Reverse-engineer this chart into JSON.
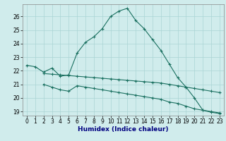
{
  "xlabel": "Humidex (Indice chaleur)",
  "bg_color": "#d0ecec",
  "line_color": "#1a7060",
  "grid_color": "#aad4d4",
  "xlim": [
    -0.5,
    23.5
  ],
  "ylim": [
    18.7,
    26.9
  ],
  "xticks": [
    0,
    1,
    2,
    3,
    4,
    5,
    6,
    7,
    8,
    9,
    10,
    11,
    12,
    13,
    14,
    15,
    16,
    17,
    18,
    19,
    20,
    21,
    22,
    23
  ],
  "yticks": [
    19,
    20,
    21,
    22,
    23,
    24,
    25,
    26
  ],
  "curve1_x": [
    0,
    1,
    2,
    3,
    4,
    5,
    6,
    7,
    8,
    9,
    10,
    11,
    12,
    13,
    14,
    15,
    16,
    17,
    18,
    19,
    20,
    21,
    22,
    23
  ],
  "curve1_y": [
    22.4,
    22.3,
    21.9,
    22.2,
    21.6,
    21.7,
    23.3,
    24.1,
    24.5,
    25.1,
    26.0,
    26.4,
    26.6,
    25.7,
    25.1,
    24.3,
    23.5,
    22.5,
    21.5,
    20.8,
    20.0,
    19.1,
    19.0,
    18.9
  ],
  "curve2_x": [
    2,
    3,
    4,
    5,
    6,
    7,
    8,
    9,
    10,
    11,
    12,
    13,
    14,
    15,
    16,
    17,
    18,
    19,
    20,
    21,
    22,
    23
  ],
  "curve2_y": [
    21.8,
    21.75,
    21.7,
    21.65,
    21.6,
    21.55,
    21.5,
    21.45,
    21.4,
    21.35,
    21.3,
    21.25,
    21.2,
    21.15,
    21.1,
    21.0,
    20.9,
    20.8,
    20.7,
    20.6,
    20.5,
    20.4
  ],
  "curve3_x": [
    2,
    3,
    4,
    5,
    6,
    7,
    8,
    9,
    10,
    11,
    12,
    13,
    14,
    15,
    16,
    17,
    18,
    19,
    20,
    21,
    22,
    23
  ],
  "curve3_y": [
    21.0,
    20.8,
    20.6,
    20.5,
    20.9,
    20.8,
    20.7,
    20.6,
    20.5,
    20.4,
    20.3,
    20.2,
    20.1,
    20.0,
    19.9,
    19.7,
    19.6,
    19.4,
    19.2,
    19.1,
    18.95,
    18.85
  ]
}
